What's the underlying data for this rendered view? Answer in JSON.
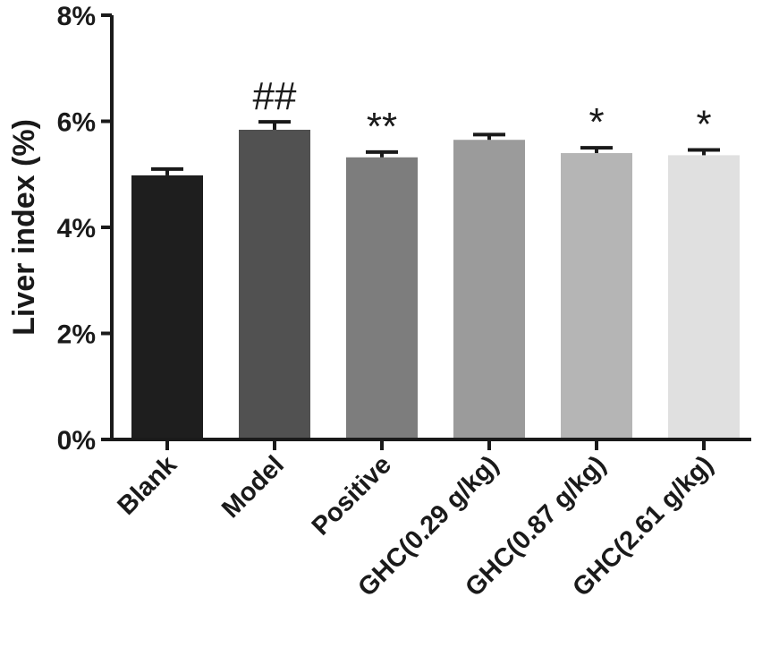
{
  "chart_data": {
    "type": "bar",
    "ylabel": "Liver index (%)",
    "xlabel": "",
    "ylim": [
      0,
      8
    ],
    "yticks": [
      {
        "value": 0,
        "label": "0%"
      },
      {
        "value": 2,
        "label": "2%"
      },
      {
        "value": 4,
        "label": "4%"
      },
      {
        "value": 6,
        "label": "6%"
      },
      {
        "value": 8,
        "label": "8%"
      }
    ],
    "categories": [
      "Blank",
      "Model",
      "Positive",
      "GHC(0.29 g/kg)",
      "GHC(0.87 g/kg)",
      "GHC(2.61 g/kg)"
    ],
    "values": [
      4.98,
      5.84,
      5.32,
      5.65,
      5.4,
      5.36
    ],
    "errors": [
      0.12,
      0.15,
      0.1,
      0.1,
      0.1,
      0.1
    ],
    "annotations": [
      "",
      "##",
      "**",
      "",
      "*",
      "*"
    ],
    "colors": [
      "#1e1e1e",
      "#515151",
      "#7d7d7d",
      "#9b9b9b",
      "#b5b5b5",
      "#e0e0e0"
    ],
    "grid": false
  }
}
